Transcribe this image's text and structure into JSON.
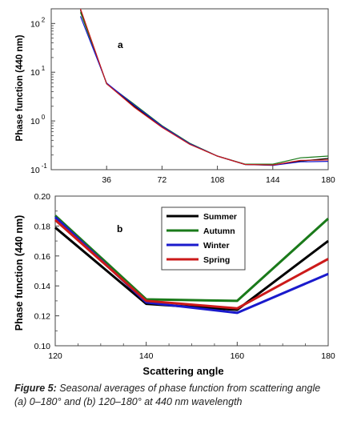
{
  "chart_data": [
    {
      "panel": "a",
      "type": "line",
      "ylabel": "Phase function (440 nm)",
      "xlabel": "",
      "xlim": [
        0,
        180
      ],
      "ylim": [
        0.1,
        200
      ],
      "yscale": "log",
      "xticks": [
        "36",
        "72",
        "108",
        "144",
        "180"
      ],
      "xtick_values": [
        36,
        72,
        108,
        144,
        180
      ],
      "yticks": [
        {
          "base": "10",
          "exp": "2",
          "value": 100
        },
        {
          "base": "10",
          "exp": "1",
          "value": 10
        },
        {
          "base": "10",
          "exp": "0",
          "value": 1
        },
        {
          "base": "10",
          "exp": "-1",
          "value": 0.1
        }
      ],
      "series": [
        {
          "color": "#000000",
          "x": [
            19,
            36,
            54,
            72,
            90,
            108,
            126,
            144,
            162,
            180
          ],
          "y": [
            190,
            5.8,
            2.0,
            0.75,
            0.34,
            0.19,
            0.128,
            0.124,
            0.15,
            0.17
          ]
        },
        {
          "color": "#1a7a1a",
          "x": [
            19,
            36,
            54,
            72,
            90,
            108,
            126,
            144,
            162,
            180
          ],
          "y": [
            170,
            5.8,
            2.2,
            0.8,
            0.35,
            0.19,
            0.13,
            0.13,
            0.175,
            0.19
          ]
        },
        {
          "color": "#1a1acc",
          "x": [
            19,
            36,
            54,
            72,
            90,
            108,
            126,
            144,
            162,
            180
          ],
          "y": [
            140,
            6.0,
            2.1,
            0.78,
            0.34,
            0.19,
            0.128,
            0.122,
            0.145,
            0.148
          ]
        },
        {
          "color": "#cc1a1a",
          "x": [
            19,
            36,
            54,
            72,
            90,
            108,
            126,
            144,
            162,
            180
          ],
          "y": [
            200,
            5.8,
            1.9,
            0.74,
            0.33,
            0.19,
            0.128,
            0.125,
            0.155,
            0.158
          ]
        }
      ],
      "annotation": "a"
    },
    {
      "panel": "b",
      "type": "line",
      "xlabel": "Scattering angle",
      "ylabel": "Phase function (440 nm)",
      "xlim": [
        120,
        180
      ],
      "ylim": [
        0.1,
        0.2
      ],
      "xticks": [
        "120",
        "140",
        "160",
        "180"
      ],
      "xtick_values": [
        120,
        140,
        160,
        180
      ],
      "yticks": [
        "0.20",
        "0.18",
        "0.16",
        "0.14",
        "0.12",
        "0.10"
      ],
      "ytick_values": [
        0.2,
        0.18,
        0.16,
        0.14,
        0.12,
        0.1
      ],
      "legend_position": "top-right",
      "series": [
        {
          "name": "Summer",
          "color": "#000000",
          "x": [
            120,
            140,
            160,
            180
          ],
          "y": [
            0.179,
            0.128,
            0.124,
            0.17
          ]
        },
        {
          "name": "Autumn",
          "color": "#1a7a1a",
          "x": [
            120,
            140,
            160,
            180
          ],
          "y": [
            0.187,
            0.131,
            0.13,
            0.185
          ]
        },
        {
          "name": "Winter",
          "color": "#1a1acc",
          "x": [
            120,
            140,
            160,
            180
          ],
          "y": [
            0.186,
            0.129,
            0.122,
            0.148
          ]
        },
        {
          "name": "Spring",
          "color": "#cc1a1a",
          "x": [
            120,
            140,
            160,
            180
          ],
          "y": [
            0.184,
            0.13,
            0.125,
            0.158
          ]
        }
      ],
      "annotation": "b"
    }
  ],
  "caption": {
    "label": "Figure 5:",
    "text": " Seasonal averages of phase function from scattering angle (a) 0–180° and (b) 120–180° at 440 nm wavelength"
  }
}
